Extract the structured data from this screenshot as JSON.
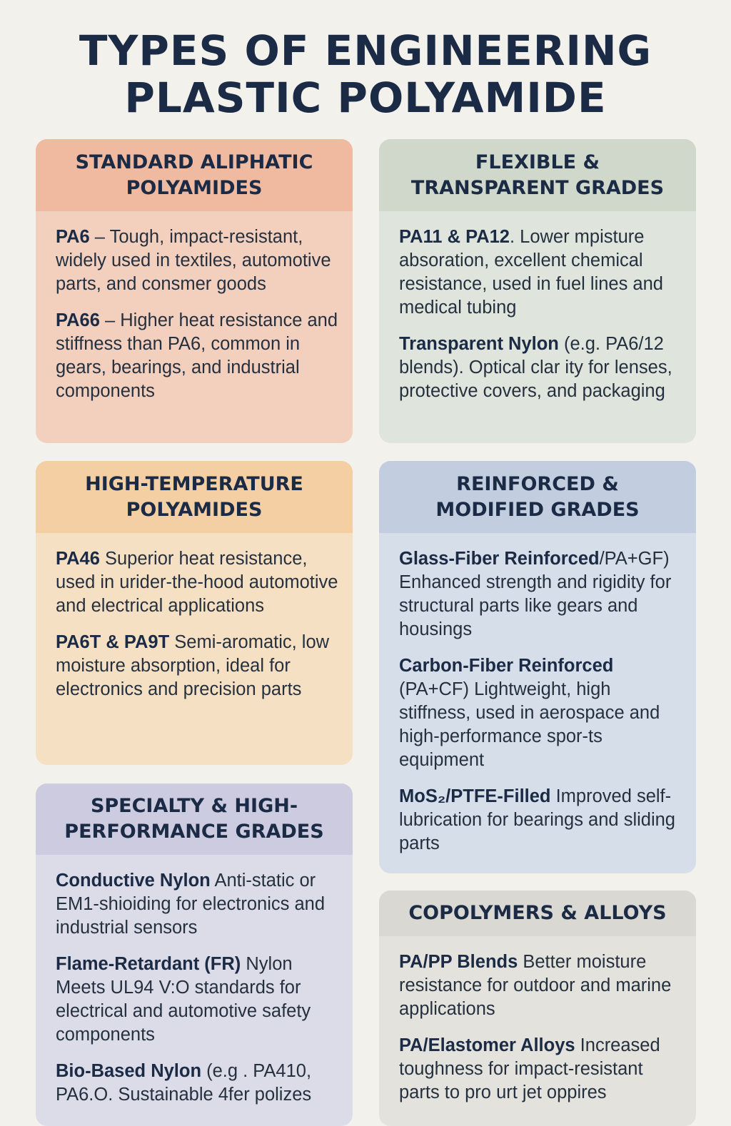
{
  "title": "TYPES OF ENGINEERING\nPLASTIC POLYAMIDE",
  "colors": {
    "background": "#f3f1ec",
    "title": "#1b2b45"
  },
  "cards": [
    {
      "heading": "STANDARD ALIPHATIC\nPOLYAMIDES",
      "header_color": "#efbaa0",
      "body_color": "#f3cfbe",
      "items": [
        {
          "name": "PA6",
          "text": " – Tough, impact-resistant, widely used in textiles, automotive parts, and consmer goods"
        },
        {
          "name": "PA66",
          "text": " – Higher heat resistance and stiffness than PA6, common in gears, bearings, and industrial components"
        }
      ]
    },
    {
      "heading": "FLEXIBLE &\nTRANSPARENT GRADES",
      "header_color": "#cfd8cb",
      "body_color": "#dfe5dc",
      "items": [
        {
          "name": "PA11 & PA12",
          "text": ". Lower mpisture absoration, excellent chemical resistance, used in fuel lines and medical tubing"
        },
        {
          "name": "Transparent Nylon",
          "text": " (e.g. PA6/12 blends). Optical clar ity for lenses, protective covers, and packaging"
        }
      ]
    },
    {
      "heading": "HIGH-TEMPERATURE\nPOLYAMIDES",
      "header_color": "#f3cfa3",
      "body_color": "#f6e0c3",
      "items": [
        {
          "name": "PA46",
          "text": "  Superior heat resistance, used in urider-the-hood automotive and electrical applications"
        },
        {
          "name": "PA6T & PA9T",
          "text": "  Semi-aromatic, low moisture absorption, ideal for electronics and precision parts"
        }
      ]
    },
    {
      "heading": "REINFORCED &\nMODIFIED GRADES",
      "header_color": "#c3cde0",
      "body_color": "#d6deea",
      "items": [
        {
          "name": "Glass-Fiber Reinforced",
          "text": "/PA+GF) Enhanced strength and rigidity for structural parts like gears and housings"
        },
        {
          "name": "Carbon-Fiber Reinforced",
          "text": " (PA+CF)  Lightweight, high stiffness, used in aerospace and high-performance spor-ts equipment"
        },
        {
          "name": "MoS₂/PTFE-Filled",
          "text": "  Improved self-lubrication for bearings and sliding parts"
        }
      ]
    },
    {
      "heading": "SPECIALTY & HIGH-\nPERFORMANCE GRADES",
      "header_color": "#cccbdf",
      "body_color": "#dcdbe8",
      "items": [
        {
          "name": "Conductive Nylon",
          "text": "  Anti-static or EM1-shioiding for electronics and industrial sensors"
        },
        {
          "name": "Flame-Retardant (FR)",
          "text": " Nylon Meets UL94 V:O standards for electrical and automotive safety components"
        },
        {
          "name": "Bio-Based Nylon",
          "text": " (e.g . PA410, PA6.O. Sustainable 4fer polizes"
        }
      ]
    },
    {
      "heading": "COPOLYMERS & ALLOYS",
      "header_color": "#d9d8d3",
      "body_color": "#e3e2dd",
      "items": [
        {
          "name": "PA/PP Blends",
          "text": " Better moisture resistance for outdoor and marine applications"
        },
        {
          "name": "PA/Elastomer Alloys",
          "text": " Increased toughness for impact-resistant parts to pro urt jet oppires"
        }
      ]
    }
  ]
}
